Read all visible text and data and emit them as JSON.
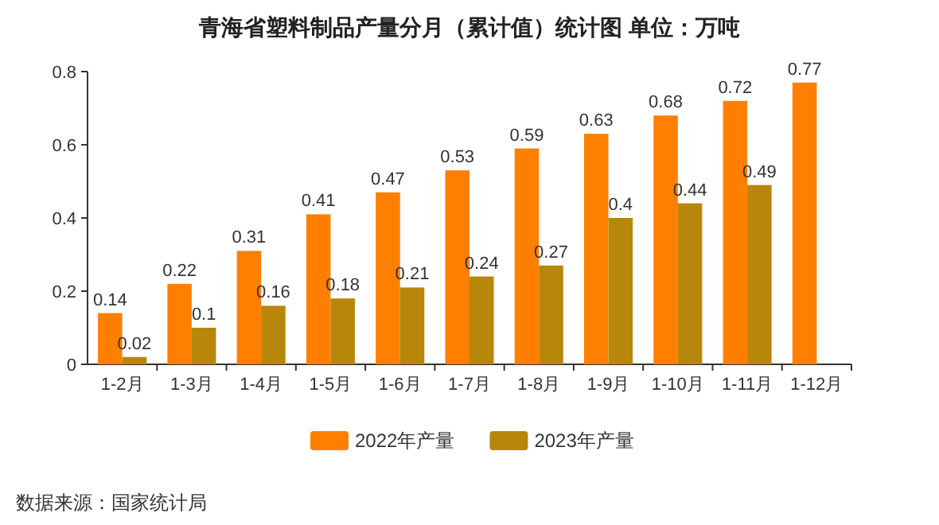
{
  "chart_data": {
    "type": "bar",
    "title": "青海省塑料制品产量分月（累计值）统计图 单位：万吨",
    "categories": [
      "1-2月",
      "1-3月",
      "1-4月",
      "1-5月",
      "1-6月",
      "1-7月",
      "1-8月",
      "1-9月",
      "1-10月",
      "1-11月",
      "1-12月"
    ],
    "series": [
      {
        "name": "2022年产量",
        "color": "#ff7f00",
        "values": [
          0.14,
          0.22,
          0.31,
          0.41,
          0.47,
          0.53,
          0.59,
          0.63,
          0.68,
          0.72,
          0.77
        ]
      },
      {
        "name": "2023年产量",
        "color": "#b8860b",
        "values": [
          0.02,
          0.1,
          0.16,
          0.18,
          0.21,
          0.24,
          0.27,
          0.4,
          0.44,
          0.49,
          null
        ]
      }
    ],
    "ylim": [
      0,
      0.8
    ],
    "yticks": [
      0,
      0.2,
      0.4,
      0.6,
      0.8
    ],
    "data_labels": true,
    "legend": "bottom",
    "annotations": [
      "数据来源：国家统计局"
    ]
  }
}
